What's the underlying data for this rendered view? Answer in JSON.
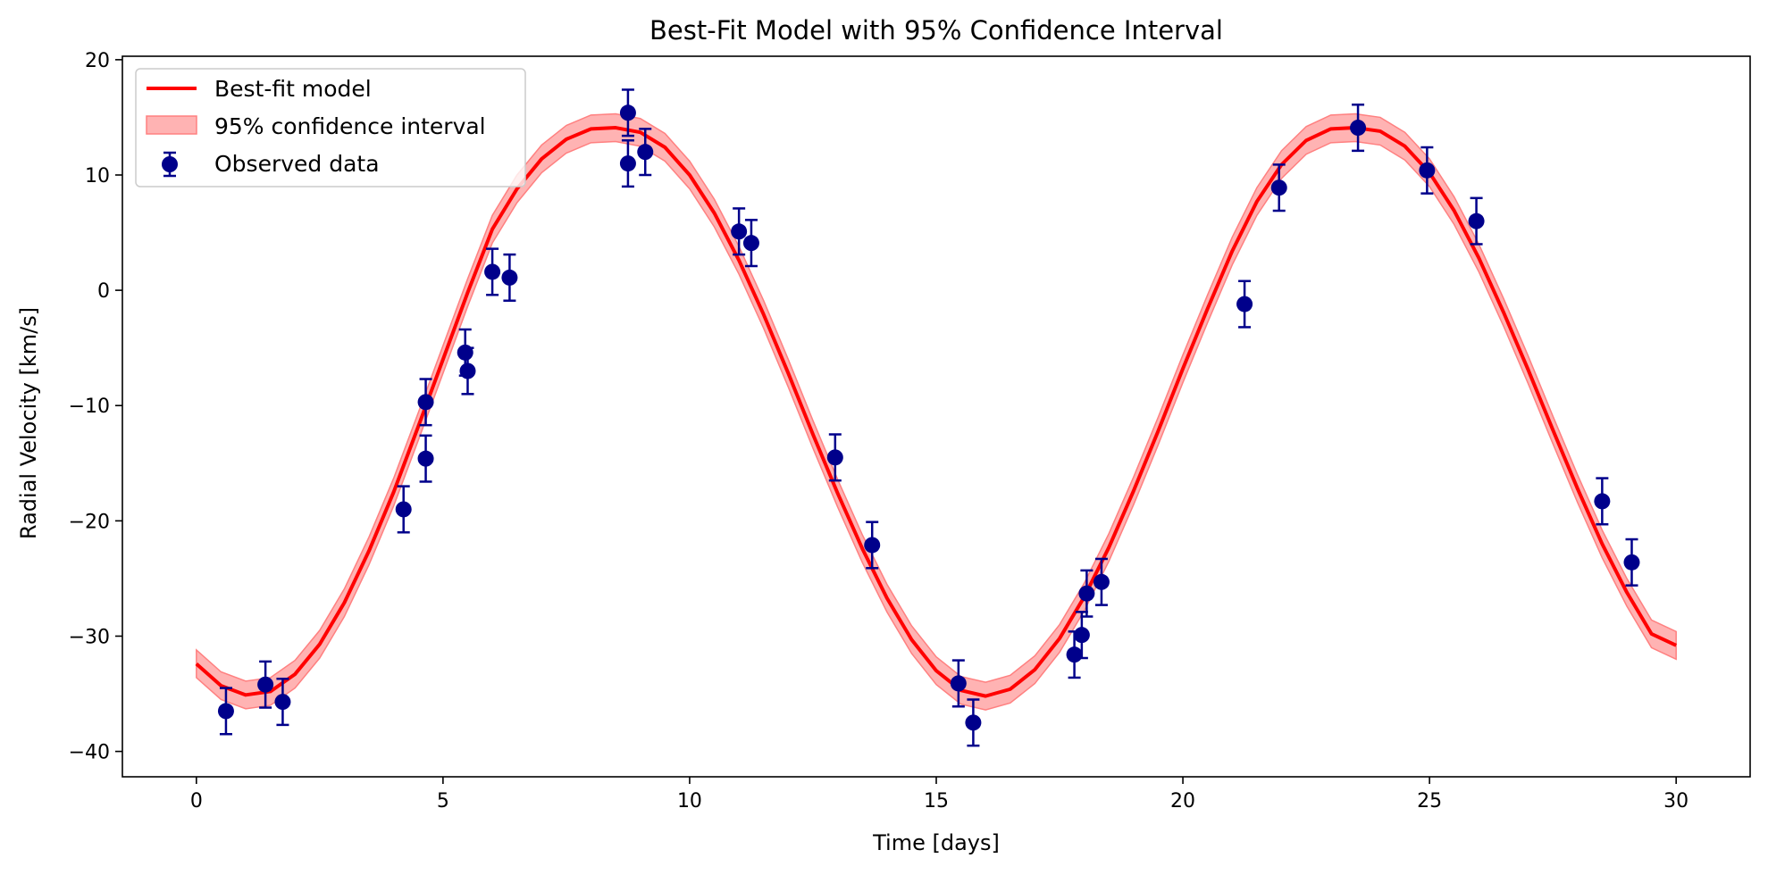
{
  "chart_data": {
    "type": "scatter",
    "title": "Best-Fit Model with 95% Confidence Interval",
    "xlabel": "Time [days]",
    "ylabel": "Radial Velocity [km/s]",
    "xlim": [
      -1.5,
      31.5
    ],
    "ylim": [
      -42.2,
      20.3
    ],
    "xticks": [
      0,
      5,
      10,
      15,
      20,
      25,
      30
    ],
    "yticks": [
      -40,
      -30,
      -20,
      -10,
      0,
      10,
      20
    ],
    "xtick_labels": [
      "0",
      "5",
      "10",
      "15",
      "20",
      "25",
      "30"
    ],
    "ytick_labels": [
      "−40",
      "−30",
      "−20",
      "−10",
      "0",
      "10",
      "20"
    ],
    "grid": false,
    "legend_placement": "top-left",
    "legend": {
      "model_label": "Best-fit model",
      "ci_label": "95% confidence interval",
      "data_label": "Observed data"
    },
    "colors": {
      "model": "#ff0000",
      "ci_fill": "#ff8080",
      "data": "#00008b"
    },
    "model": {
      "x": [
        0,
        0.5,
        1,
        1.5,
        2,
        2.5,
        3,
        3.5,
        4,
        4.5,
        5,
        5.5,
        6,
        6.5,
        7,
        7.5,
        8,
        8.5,
        9,
        9.5,
        10,
        10.5,
        11,
        11.5,
        12,
        12.5,
        13,
        13.5,
        14,
        14.5,
        15,
        15.5,
        16,
        16.5,
        17,
        17.5,
        18,
        18.5,
        19,
        19.5,
        20,
        20.5,
        21,
        21.5,
        22,
        22.5,
        23,
        23.5,
        24,
        24.5,
        25,
        25.5,
        26,
        26.5,
        27,
        27.5,
        28,
        28.5,
        29,
        29.5,
        30
      ],
      "y": [
        -32.4,
        -34.3,
        -35.1,
        -34.8,
        -33.3,
        -30.7,
        -27.1,
        -22.6,
        -17.5,
        -11.8,
        -6.0,
        -0.2,
        5.3,
        8.8,
        11.4,
        13.1,
        14.0,
        14.1,
        13.7,
        12.4,
        10.0,
        6.7,
        2.6,
        -2.1,
        -7.2,
        -12.5,
        -17.6,
        -22.4,
        -26.7,
        -30.3,
        -33.0,
        -34.7,
        -35.2,
        -34.6,
        -32.9,
        -30.2,
        -26.6,
        -22.3,
        -17.4,
        -12.2,
        -6.8,
        -1.6,
        3.4,
        7.7,
        10.9,
        13.0,
        14.0,
        14.1,
        13.8,
        12.5,
        10.2,
        6.9,
        2.8,
        -1.9,
        -6.9,
        -12.1,
        -17.2,
        -22.0,
        -26.2,
        -29.8,
        -30.8
      ]
    },
    "ci_halfwidth": 1.2,
    "observations": {
      "x": [
        0.6,
        1.4,
        1.75,
        4.2,
        4.65,
        4.65,
        5.45,
        5.5,
        6.0,
        6.35,
        8.75,
        8.75,
        9.1,
        11.0,
        11.25,
        12.95,
        13.7,
        15.45,
        15.75,
        17.8,
        17.95,
        18.05,
        18.35,
        21.25,
        21.95,
        23.55,
        24.95,
        25.95,
        28.5,
        29.1
      ],
      "y": [
        -36.5,
        -34.2,
        -35.7,
        -19.0,
        -9.7,
        -14.6,
        -5.4,
        -7.0,
        1.6,
        1.1,
        15.4,
        11.0,
        12.0,
        5.1,
        4.1,
        -14.5,
        -22.1,
        -34.1,
        -37.5,
        -31.6,
        -29.9,
        -26.3,
        -25.3,
        -1.2,
        8.9,
        14.1,
        10.4,
        6.0,
        -18.3,
        -23.6
      ],
      "yerr": 2.0
    }
  }
}
